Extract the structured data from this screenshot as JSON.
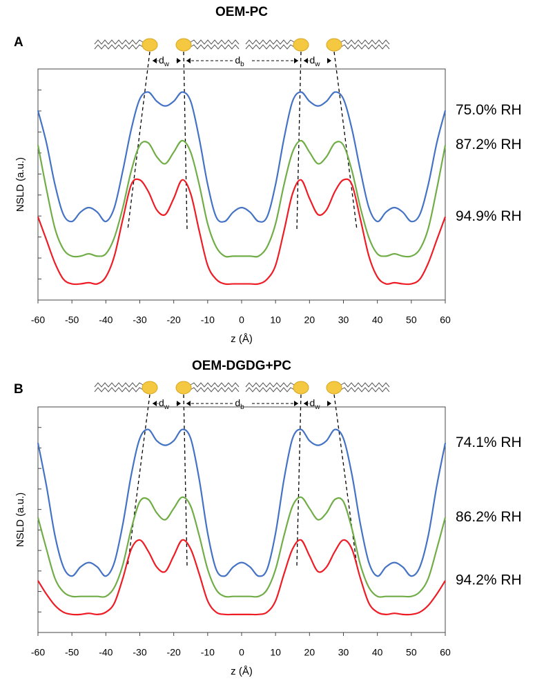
{
  "chart_data": [
    {
      "type": "line",
      "panel": "A",
      "title": "OEM-PC",
      "xlabel": "z (Å)",
      "ylabel": "NSLD (a.u.)",
      "spacing_labels": [
        {
          "symbol": "d",
          "subscript": "w"
        },
        {
          "symbol": "d",
          "subscript": "b"
        },
        {
          "symbol": "d",
          "subscript": "w"
        }
      ],
      "x": [
        -60,
        -57.5,
        -55,
        -52.5,
        -50,
        -47.5,
        -45,
        -42.5,
        -40,
        -37.5,
        -35,
        -32.5,
        -30,
        -27.5,
        -25,
        -22.5,
        -20,
        -17.5,
        -15,
        -12.5,
        -10,
        -7.5,
        -5,
        -2.5,
        0,
        2.5,
        5,
        7.5,
        10,
        12.5,
        15,
        17.5,
        20,
        22.5,
        25,
        27.5,
        30,
        32.5,
        35,
        37.5,
        40,
        42.5,
        45,
        47.5,
        50,
        52.5,
        55,
        57.5,
        60
      ],
      "xlim": [
        -60,
        60
      ],
      "xticks": [
        -60,
        -50,
        -40,
        -30,
        -20,
        -10,
        0,
        10,
        20,
        30,
        40,
        50,
        60
      ],
      "ylim": [
        0,
        10
      ],
      "series": [
        {
          "name": "75.0% RH",
          "color": "#4472c4",
          "values": [
            8.2,
            6.8,
            5.0,
            3.7,
            3.4,
            3.8,
            4.0,
            3.8,
            3.4,
            4.0,
            5.6,
            7.4,
            8.7,
            9.0,
            8.6,
            8.4,
            8.6,
            9.0,
            8.6,
            7.0,
            5.0,
            3.6,
            3.4,
            3.8,
            4.0,
            3.8,
            3.4,
            3.6,
            5.0,
            7.0,
            8.6,
            9.0,
            8.6,
            8.4,
            8.6,
            9.0,
            8.7,
            7.4,
            5.6,
            4.0,
            3.4,
            3.8,
            4.0,
            3.8,
            3.4,
            3.7,
            5.0,
            6.8,
            8.2
          ]
        },
        {
          "name": "87.2% RH",
          "color": "#70ad47",
          "values": [
            6.7,
            4.8,
            3.1,
            2.2,
            1.9,
            1.9,
            2.0,
            1.9,
            2.0,
            2.7,
            4.0,
            5.6,
            6.7,
            6.8,
            6.2,
            5.9,
            6.4,
            6.9,
            6.4,
            5.0,
            3.3,
            2.3,
            1.9,
            1.9,
            1.9,
            1.9,
            1.9,
            2.3,
            3.3,
            5.0,
            6.4,
            6.9,
            6.4,
            5.9,
            6.2,
            6.8,
            6.7,
            5.6,
            4.0,
            2.7,
            2.0,
            1.9,
            2.0,
            1.9,
            1.9,
            2.2,
            3.1,
            4.8,
            6.7
          ]
        },
        {
          "name": "94.9% RH",
          "color": "#ee1c25",
          "values": [
            3.6,
            2.6,
            1.6,
            0.9,
            0.7,
            0.7,
            0.75,
            0.7,
            1.0,
            1.9,
            3.5,
            5.0,
            5.2,
            4.7,
            3.9,
            3.7,
            4.4,
            5.2,
            4.6,
            3.0,
            1.5,
            0.9,
            0.7,
            0.7,
            0.7,
            0.7,
            0.7,
            0.9,
            1.5,
            3.0,
            4.6,
            5.2,
            4.4,
            3.7,
            3.9,
            4.7,
            5.2,
            5.0,
            3.5,
            1.9,
            1.0,
            0.7,
            0.75,
            0.7,
            0.7,
            0.9,
            1.6,
            2.6,
            3.6
          ]
        }
      ]
    },
    {
      "type": "line",
      "panel": "B",
      "title": "OEM-DGDG+PC",
      "xlabel": "z (Å)",
      "ylabel": "NSLD (a.u.)",
      "spacing_labels": [
        {
          "symbol": "d",
          "subscript": "w"
        },
        {
          "symbol": "d",
          "subscript": "b"
        },
        {
          "symbol": "d",
          "subscript": "w"
        }
      ],
      "x": [
        -60,
        -57.5,
        -55,
        -52.5,
        -50,
        -47.5,
        -45,
        -42.5,
        -40,
        -37.5,
        -35,
        -32.5,
        -30,
        -27.5,
        -25,
        -22.5,
        -20,
        -17.5,
        -15,
        -12.5,
        -10,
        -7.5,
        -5,
        -2.5,
        0,
        2.5,
        5,
        7.5,
        10,
        12.5,
        15,
        17.5,
        20,
        22.5,
        25,
        27.5,
        30,
        32.5,
        35,
        37.5,
        40,
        42.5,
        45,
        47.5,
        50,
        52.5,
        55,
        57.5,
        60
      ],
      "xlim": [
        -60,
        60
      ],
      "xticks": [
        -60,
        -50,
        -40,
        -30,
        -20,
        -10,
        0,
        10,
        20,
        30,
        40,
        50,
        60
      ],
      "ylim": [
        0,
        10
      ],
      "series": [
        {
          "name": "74.1% RH",
          "color": "#4472c4",
          "values": [
            8.4,
            6.5,
            4.3,
            2.9,
            2.5,
            2.9,
            3.1,
            2.9,
            2.5,
            3.1,
            4.8,
            7.0,
            8.6,
            9.0,
            8.5,
            8.3,
            8.5,
            9.0,
            8.6,
            6.8,
            4.4,
            2.8,
            2.5,
            2.9,
            3.1,
            2.9,
            2.5,
            2.8,
            4.4,
            6.8,
            8.6,
            9.0,
            8.5,
            8.3,
            8.5,
            9.0,
            8.6,
            7.0,
            4.8,
            3.1,
            2.5,
            2.9,
            3.1,
            2.9,
            2.5,
            2.9,
            4.3,
            6.5,
            8.4
          ]
        },
        {
          "name": "86.2% RH",
          "color": "#70ad47",
          "values": [
            5.1,
            3.7,
            2.4,
            1.8,
            1.6,
            1.6,
            1.6,
            1.6,
            1.6,
            2.0,
            3.0,
            4.6,
            5.8,
            5.9,
            5.3,
            5.0,
            5.5,
            6.0,
            5.6,
            4.3,
            2.8,
            1.9,
            1.6,
            1.6,
            1.6,
            1.6,
            1.6,
            1.9,
            2.8,
            4.3,
            5.6,
            6.0,
            5.5,
            5.0,
            5.3,
            5.9,
            5.8,
            4.6,
            3.0,
            2.0,
            1.6,
            1.6,
            1.6,
            1.6,
            1.6,
            1.8,
            2.4,
            3.7,
            5.1
          ]
        },
        {
          "name": "94.2% RH",
          "color": "#ee1c25",
          "values": [
            2.3,
            1.7,
            1.2,
            0.9,
            0.8,
            0.8,
            0.85,
            0.8,
            0.9,
            1.3,
            2.4,
            3.7,
            4.1,
            3.6,
            2.9,
            2.7,
            3.4,
            4.1,
            3.7,
            2.6,
            1.4,
            0.9,
            0.8,
            0.8,
            0.8,
            0.8,
            0.8,
            0.9,
            1.4,
            2.6,
            3.7,
            4.1,
            3.4,
            2.7,
            2.9,
            3.6,
            4.1,
            3.7,
            2.4,
            1.3,
            0.9,
            0.8,
            0.85,
            0.8,
            0.8,
            0.9,
            1.2,
            1.7,
            2.3
          ]
        }
      ]
    }
  ]
}
